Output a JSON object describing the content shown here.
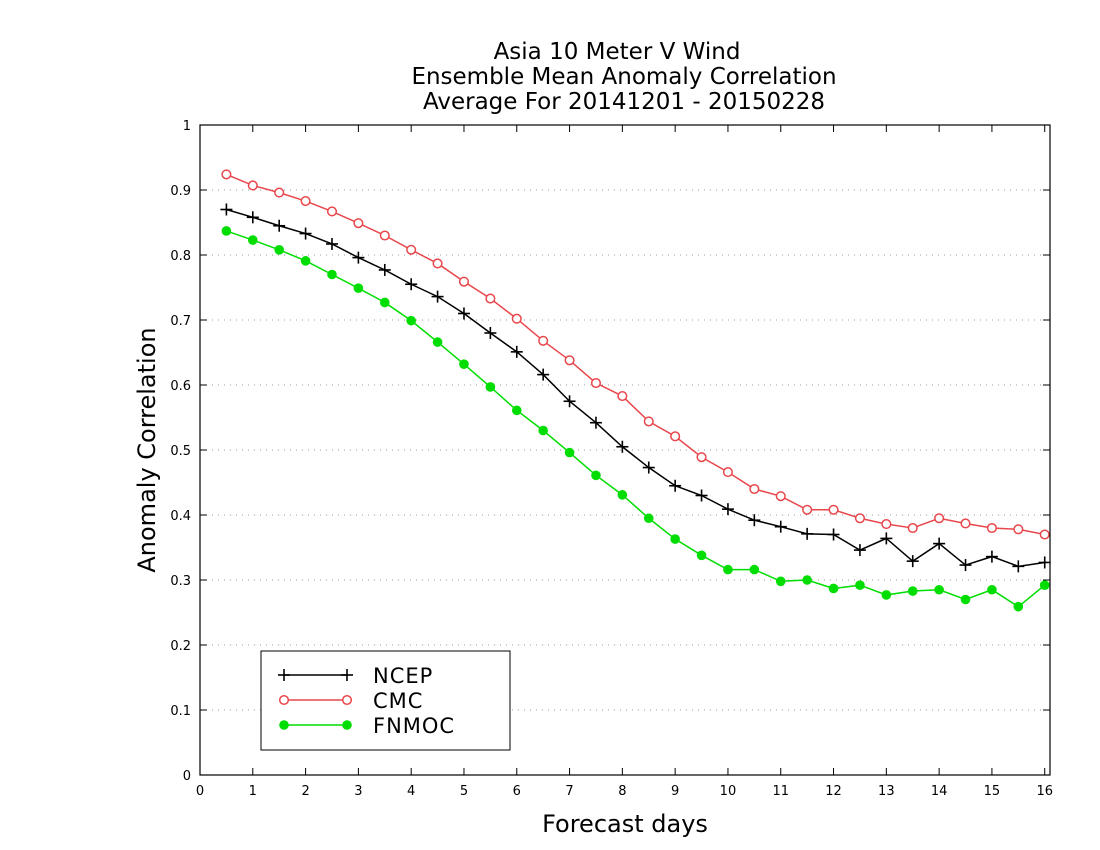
{
  "chart_data": {
    "type": "line",
    "title_lines": [
      "Asia 10 Meter V Wind",
      "Ensemble Mean Anomaly Correlation",
      "Average For 20141201 - 20150228"
    ],
    "xlabel": "Forecast days",
    "ylabel": "Anomaly Correlation",
    "xlim": [
      0,
      16.1
    ],
    "ylim": [
      0,
      1
    ],
    "xticks": [
      "0",
      "1",
      "2",
      "3",
      "4",
      "5",
      "6",
      "7",
      "8",
      "9",
      "10",
      "11",
      "12",
      "13",
      "14",
      "15",
      "16"
    ],
    "yticks": [
      "0",
      "0.1",
      "0.2",
      "0.3",
      "0.4",
      "0.5",
      "0.6",
      "0.7",
      "0.8",
      "0.9",
      "1"
    ],
    "grid": true,
    "legend_position": "bottom-left",
    "x": [
      0.5,
      1,
      1.5,
      2,
      2.5,
      3,
      3.5,
      4,
      4.5,
      5,
      5.5,
      6,
      6.5,
      7,
      7.5,
      8,
      8.5,
      9,
      9.5,
      10,
      10.5,
      11,
      11.5,
      12,
      12.5,
      13,
      13.5,
      14,
      14.5,
      15,
      15.5,
      16
    ],
    "series": [
      {
        "name": "NCEP",
        "color": "#000000",
        "marker": "plus",
        "values": [
          0.87,
          0.858,
          0.845,
          0.833,
          0.817,
          0.796,
          0.777,
          0.755,
          0.736,
          0.71,
          0.68,
          0.651,
          0.616,
          0.575,
          0.542,
          0.505,
          0.473,
          0.445,
          0.43,
          0.409,
          0.392,
          0.382,
          0.371,
          0.37,
          0.346,
          0.364,
          0.329,
          0.356,
          0.323,
          0.336,
          0.321,
          0.327
        ]
      },
      {
        "name": "CMC",
        "color": "#e8474c",
        "marker": "open-circle",
        "values": [
          0.924,
          0.907,
          0.896,
          0.883,
          0.867,
          0.849,
          0.83,
          0.808,
          0.787,
          0.759,
          0.733,
          0.702,
          0.668,
          0.638,
          0.603,
          0.583,
          0.544,
          0.521,
          0.489,
          0.466,
          0.44,
          0.429,
          0.408,
          0.408,
          0.395,
          0.386,
          0.38,
          0.395,
          0.387,
          0.38,
          0.378,
          0.37
        ]
      },
      {
        "name": "FNMOC",
        "color": "#00dd00",
        "marker": "filled-circle",
        "values": [
          0.837,
          0.823,
          0.808,
          0.791,
          0.77,
          0.749,
          0.727,
          0.699,
          0.666,
          0.632,
          0.597,
          0.561,
          0.53,
          0.496,
          0.461,
          0.431,
          0.395,
          0.363,
          0.338,
          0.316,
          0.316,
          0.298,
          0.3,
          0.287,
          0.292,
          0.277,
          0.283,
          0.285,
          0.27,
          0.285,
          0.259,
          0.292
        ]
      }
    ]
  }
}
